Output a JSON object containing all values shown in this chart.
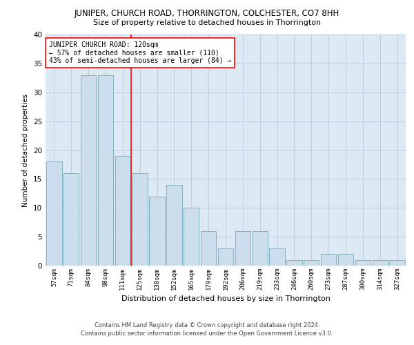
{
  "title": "JUNIPER, CHURCH ROAD, THORRINGTON, COLCHESTER, CO7 8HH",
  "subtitle": "Size of property relative to detached houses in Thorrington",
  "xlabel": "Distribution of detached houses by size in Thorrington",
  "ylabel": "Number of detached properties",
  "categories": [
    "57sqm",
    "71sqm",
    "84sqm",
    "98sqm",
    "111sqm",
    "125sqm",
    "138sqm",
    "152sqm",
    "165sqm",
    "179sqm",
    "192sqm",
    "206sqm",
    "219sqm",
    "233sqm",
    "246sqm",
    "260sqm",
    "273sqm",
    "287sqm",
    "300sqm",
    "314sqm",
    "327sqm"
  ],
  "values": [
    18,
    16,
    33,
    33,
    19,
    16,
    12,
    14,
    10,
    6,
    3,
    6,
    6,
    3,
    1,
    1,
    2,
    2,
    1,
    1,
    1
  ],
  "bar_color": "#ccdded",
  "bar_edge_color": "#7aaabb",
  "annotation_text": "JUNIPER CHURCH ROAD: 120sqm\n← 57% of detached houses are smaller (110)\n43% of semi-detached houses are larger (84) →",
  "ylim": [
    0,
    40
  ],
  "yticks": [
    0,
    5,
    10,
    15,
    20,
    25,
    30,
    35,
    40
  ],
  "background_color": "#ffffff",
  "plot_bg_color": "#dce9f3",
  "grid_color": "#b0c4d8",
  "footer_line1": "Contains HM Land Registry data © Crown copyright and database right 2024.",
  "footer_line2": "Contains public sector information licensed under the Open Government Licence v3.0."
}
